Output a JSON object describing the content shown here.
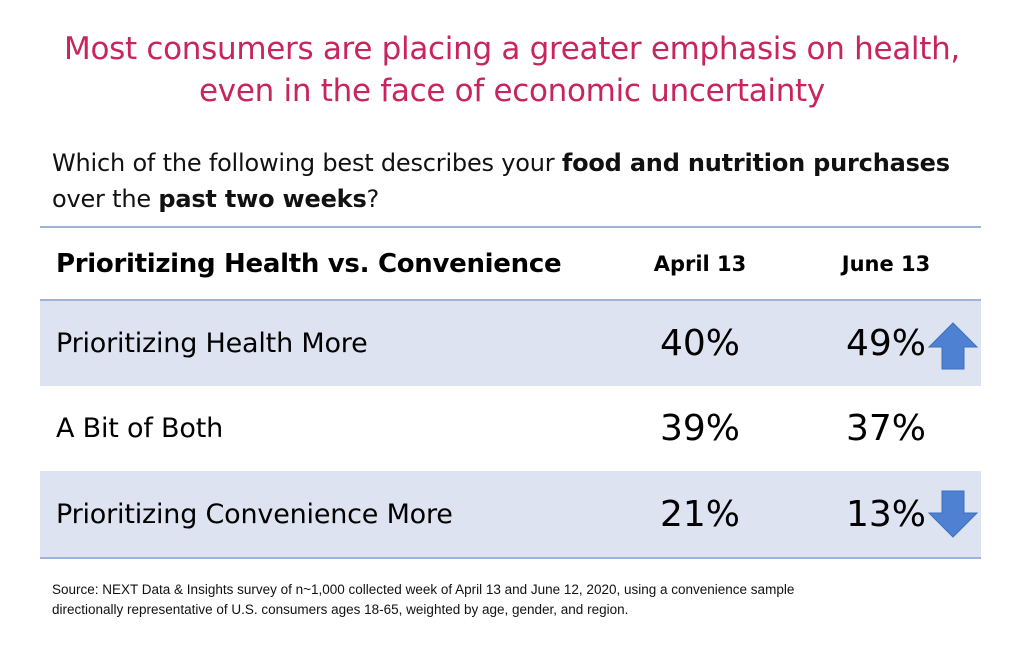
{
  "headline": {
    "line1": "Most consumers are placing a greater emphasis on health,",
    "line2": "even in the face of economic uncertainty"
  },
  "question": {
    "part1": "Which of the following best describes your ",
    "bold1": "food and nutrition purchases",
    "part2": "over the ",
    "bold2": "past two weeks",
    "part3": "?"
  },
  "colors": {
    "headline": "#c8245e",
    "row_shade": "#dde3f0",
    "rule": "#9fb2dc",
    "arrow": "#4f81d3"
  },
  "chart_data": {
    "type": "table",
    "title": "Prioritizing Health vs. Convenience",
    "columns": [
      "April 13",
      "June 13"
    ],
    "rows": [
      {
        "label": "Prioritizing Health More",
        "values": [
          "40%",
          "49%"
        ],
        "trend_icon": "up-arrow-icon"
      },
      {
        "label": "A Bit of Both",
        "values": [
          "39%",
          "37%"
        ],
        "trend_icon": ""
      },
      {
        "label": "Prioritizing Convenience More",
        "values": [
          "21%",
          "13%"
        ],
        "trend_icon": "down-arrow-icon"
      }
    ]
  },
  "source": {
    "line1": "Source: NEXT Data & Insights survey of n~1,000 collected week of April 13 and June 12, 2020, using a convenience sample",
    "line2": "directionally representative of U.S. consumers ages 18-65, weighted by age, gender, and region."
  }
}
